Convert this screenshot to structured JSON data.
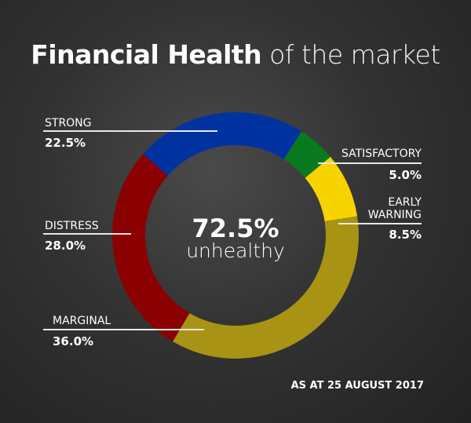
{
  "chart_data": {
    "type": "pie",
    "variant": "donut",
    "title_bold": "Financial Health",
    "title_light": "of the market",
    "categories": [
      "STRONG",
      "SATISFACTORY",
      "EARLY WARNING",
      "MARGINAL",
      "DISTRESS"
    ],
    "values": [
      22.5,
      5.0,
      8.5,
      36.0,
      28.0
    ],
    "value_labels": [
      "22.5%",
      "5.0%",
      "8.5%",
      "36.0%",
      "28.0%"
    ],
    "colors": [
      "#0033a0",
      "#0a7a1e",
      "#f7d300",
      "#a89314",
      "#8b0000"
    ],
    "center_value": "72.5%",
    "center_label": "unhealthy",
    "footnote": "AS AT 25 AUGUST 2017"
  }
}
